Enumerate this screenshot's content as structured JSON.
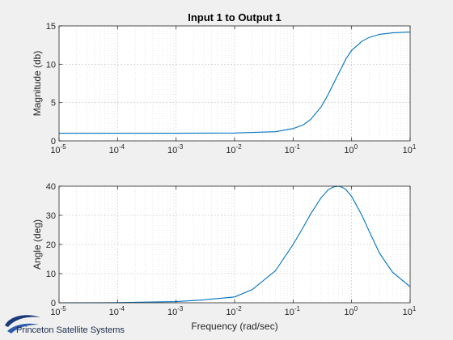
{
  "figure": {
    "logo_text": "Princeton Satellite Systems",
    "colors": {
      "line": "#0072bd",
      "background": "#f0f0f0",
      "axes_bg": "#ffffff",
      "grid": "#d0d0d0",
      "logo": "#1a3a7a"
    }
  },
  "chart_data": [
    {
      "type": "line",
      "title": "Input 1 to Output 1",
      "xlabel": "",
      "ylabel": "Magnitude (db)",
      "xscale": "log",
      "xlim": [
        1e-05,
        10
      ],
      "ylim": [
        0,
        15
      ],
      "yticks": [
        0,
        5,
        10,
        15
      ],
      "xtick_exponents": [
        "-5",
        "-4",
        "-3",
        "-2",
        "-1",
        "0",
        "1"
      ],
      "grid": true,
      "series": [
        {
          "x": [
            1e-05,
            0.0001,
            0.001,
            0.01,
            0.05,
            0.1,
            0.15,
            0.2,
            0.3,
            0.4,
            0.5,
            0.6,
            0.7,
            0.8,
            1,
            1.5,
            2,
            3,
            5,
            10
          ],
          "y": [
            1.0,
            1.0,
            1.0,
            1.02,
            1.2,
            1.6,
            2.1,
            2.8,
            4.4,
            6.1,
            7.6,
            8.8,
            9.8,
            10.7,
            11.8,
            13.0,
            13.5,
            13.9,
            14.1,
            14.2
          ]
        }
      ]
    },
    {
      "type": "line",
      "title": "",
      "xlabel": "Frequency (rad/sec)",
      "ylabel": "Angle (deg)",
      "xscale": "log",
      "xlim": [
        1e-05,
        10
      ],
      "ylim": [
        0,
        40
      ],
      "yticks": [
        0,
        10,
        20,
        30,
        40
      ],
      "xtick_exponents": [
        "-5",
        "-4",
        "-3",
        "-2",
        "-1",
        "0",
        "1"
      ],
      "grid": true,
      "series": [
        {
          "x": [
            1e-05,
            0.0001,
            0.001,
            0.003,
            0.01,
            0.02,
            0.05,
            0.1,
            0.15,
            0.2,
            0.3,
            0.4,
            0.5,
            0.6,
            0.7,
            0.8,
            1,
            1.5,
            2,
            3,
            5,
            10
          ],
          "y": [
            0,
            0.05,
            0.4,
            1.0,
            2.0,
            4.5,
            11.0,
            20.0,
            26.0,
            30.5,
            36.0,
            38.8,
            39.8,
            40.0,
            39.6,
            38.8,
            36.5,
            30.0,
            24.5,
            17.0,
            10.5,
            5.5
          ]
        }
      ]
    }
  ]
}
